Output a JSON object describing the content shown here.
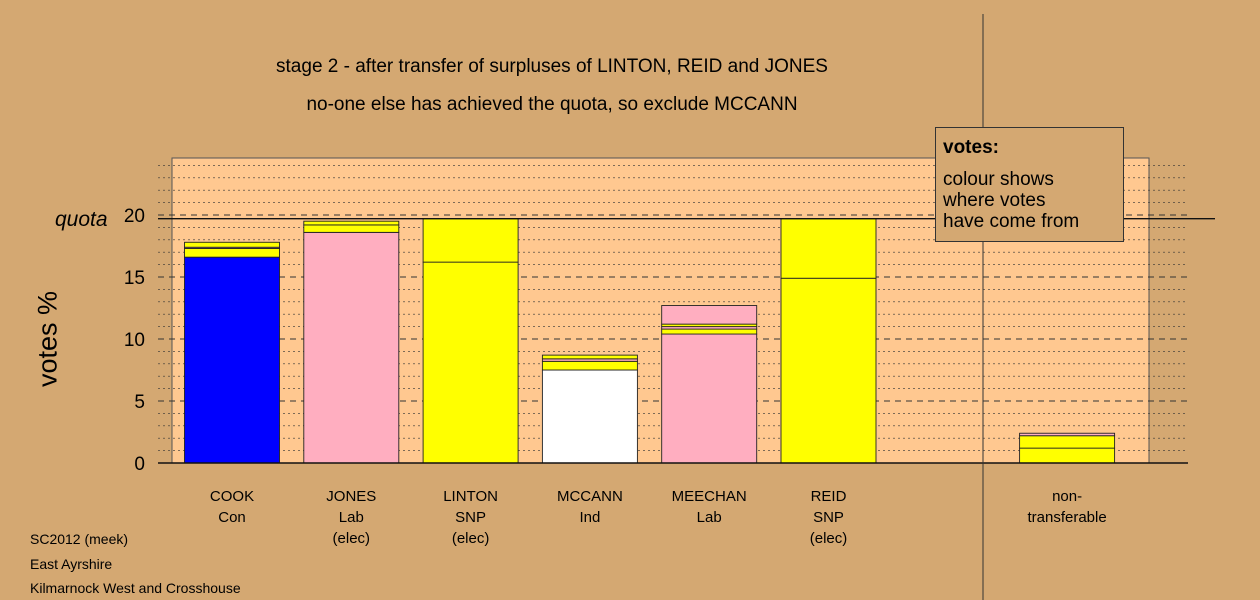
{
  "titles": {
    "line1": "stage 2 - after transfer of surpluses of LINTON, REID and JONES",
    "line2": "no-one else has achieved the quota, so exclude MCCANN"
  },
  "y_axis_label": "votes %",
  "quota_label": "quota",
  "legend": {
    "title": "votes:",
    "lines": [
      "colour shows",
      "where votes",
      "have come from"
    ]
  },
  "footer": {
    "line1": "SC2012 (meek)",
    "line2": "East Ayrshire",
    "line3": "Kilmarnock West and Crosshouse"
  },
  "colors": {
    "background": "#d4a872",
    "plot_area": "#ffc890",
    "Con": "#0000ff",
    "Lab": "#ffaec0",
    "SNP": "#ffff00",
    "Ind": "#ffffff"
  },
  "chart_data": {
    "type": "bar",
    "stacked": true,
    "ylabel": "votes %",
    "ylim": [
      0,
      24
    ],
    "yticks": [
      0,
      5,
      10,
      15,
      20
    ],
    "quota": 19.7,
    "grid": "dotted minor every 1, dashed major every 5",
    "categories": [
      {
        "name": "COOK",
        "party": "Con",
        "status": ""
      },
      {
        "name": "JONES",
        "party": "Lab",
        "status": "(elec)"
      },
      {
        "name": "LINTON",
        "party": "SNP",
        "status": "(elec)"
      },
      {
        "name": "MCCANN",
        "party": "Ind",
        "status": ""
      },
      {
        "name": "MEECHAN",
        "party": "Lab",
        "status": ""
      },
      {
        "name": "REID",
        "party": "SNP",
        "status": "(elec)"
      },
      {
        "name": "",
        "party": "",
        "status": ""
      },
      {
        "name": "non-",
        "party": "transferable",
        "status": ""
      }
    ],
    "segments": [
      [
        {
          "source": "Con",
          "value": 16.6
        },
        {
          "source": "SNP",
          "value": 0.7
        },
        {
          "source": "Lab",
          "value": 0.1
        },
        {
          "source": "SNP",
          "value": 0.4
        }
      ],
      [
        {
          "source": "Lab",
          "value": 18.6
        },
        {
          "source": "SNP",
          "value": 0.6
        },
        {
          "source": "SNP",
          "value": 0.3
        }
      ],
      [
        {
          "source": "SNP",
          "value": 16.2
        },
        {
          "source": "SNP",
          "value": 3.5
        }
      ],
      [
        {
          "source": "Ind",
          "value": 7.5
        },
        {
          "source": "SNP",
          "value": 0.7
        },
        {
          "source": "Lab",
          "value": 0.2
        },
        {
          "source": "SNP",
          "value": 0.3
        }
      ],
      [
        {
          "source": "Lab",
          "value": 10.4
        },
        {
          "source": "SNP",
          "value": 0.4
        },
        {
          "source": "Lab",
          "value": 0.2
        },
        {
          "source": "SNP",
          "value": 0.2
        },
        {
          "source": "Lab",
          "value": 1.5
        }
      ],
      [
        {
          "source": "SNP",
          "value": 14.9
        },
        {
          "source": "SNP",
          "value": 4.8
        }
      ],
      [],
      [
        {
          "source": "SNP",
          "value": 1.2
        },
        {
          "source": "SNP",
          "value": 1.0
        },
        {
          "source": "Lab",
          "value": 0.2
        }
      ]
    ]
  }
}
